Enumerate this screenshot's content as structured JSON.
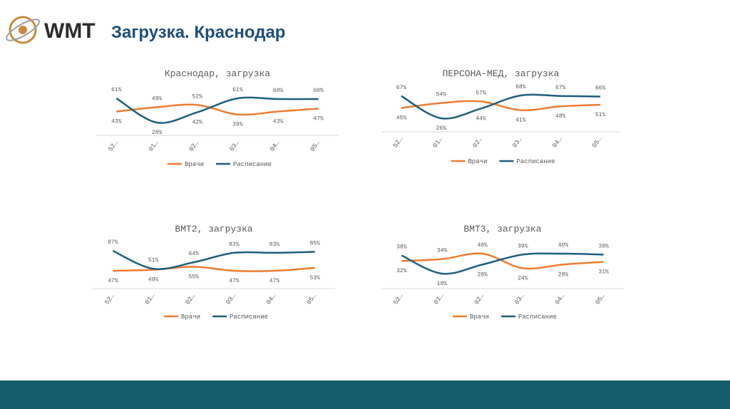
{
  "header": {
    "logo": "WMT",
    "title": "Загрузка. Краснодар"
  },
  "chart_data": [
    {
      "type": "line",
      "title": "Краснодар, загрузка",
      "categories": [
        "52…",
        "01…",
        "02…",
        "03…",
        "04…",
        "05…"
      ],
      "series": [
        {
          "name": "Врачи",
          "color": "#ed7d31",
          "values": [
            43,
            49,
            52,
            39,
            43,
            47
          ],
          "value_labels": [
            "43%",
            "49%",
            "52%",
            "39%",
            "43%",
            "47%"
          ]
        },
        {
          "name": "Расписание",
          "color": "#1f5f7e",
          "values": [
            61,
            28,
            42,
            61,
            60,
            60
          ],
          "value_labels": [
            "61%",
            "28%",
            "42%",
            "61%",
            "60%",
            "60%"
          ]
        }
      ]
    },
    {
      "type": "line",
      "title": "ПЕРСОНА-МЕД, загрузка",
      "categories": [
        "52…",
        "01…",
        "02…",
        "03…",
        "04…",
        "05…"
      ],
      "series": [
        {
          "name": "Врачи",
          "color": "#ed7d31",
          "values": [
            45,
            54,
            57,
            41,
            48,
            51
          ],
          "value_labels": [
            "45%",
            "54%",
            "57%",
            "41%",
            "48%",
            "51%"
          ]
        },
        {
          "name": "Расписание",
          "color": "#1f5f7e",
          "values": [
            67,
            26,
            44,
            68,
            67,
            66
          ],
          "value_labels": [
            "67%",
            "26%",
            "44%",
            "68%",
            "67%",
            "66%"
          ]
        }
      ]
    },
    {
      "type": "line",
      "title": "ВМТ2, загрузка",
      "categories": [
        "52…",
        "01…",
        "02…",
        "03…",
        "04…",
        "05…"
      ],
      "series": [
        {
          "name": "Врачи",
          "color": "#ed7d31",
          "values": [
            47,
            49,
            55,
            47,
            47,
            53
          ],
          "value_labels": [
            "47%",
            "49%",
            "55%",
            "47%",
            "47%",
            "53%"
          ]
        },
        {
          "name": "Расписание",
          "color": "#1f5f7e",
          "values": [
            87,
            51,
            64,
            83,
            83,
            85
          ],
          "value_labels": [
            "87%",
            "51%",
            "64%",
            "83%",
            "83%",
            "85%"
          ]
        }
      ]
    },
    {
      "type": "line",
      "title": "ВМТ3, загрузка",
      "categories": [
        "52…",
        "01…",
        "02…",
        "03…",
        "04…",
        "05…"
      ],
      "series": [
        {
          "name": "Врачи",
          "color": "#ed7d31",
          "values": [
            32,
            34,
            40,
            24,
            28,
            31
          ],
          "value_labels": [
            "32%",
            "34%",
            "40%",
            "24%",
            "28%",
            "31%"
          ]
        },
        {
          "name": "Расписание",
          "color": "#1f5f7e",
          "values": [
            38,
            18,
            28,
            39,
            40,
            39
          ],
          "value_labels": [
            "38%",
            "18%",
            "28%",
            "39%",
            "40%",
            "39%"
          ]
        }
      ]
    }
  ]
}
